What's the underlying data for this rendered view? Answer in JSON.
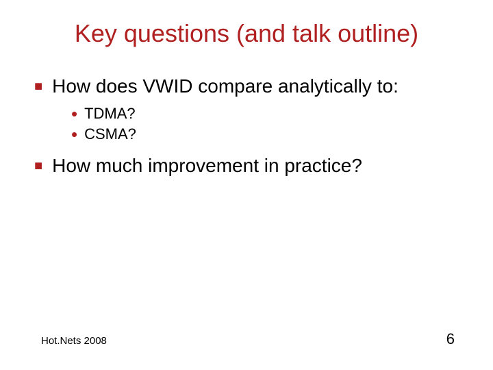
{
  "colors": {
    "accent": "#b02020",
    "text": "#000000",
    "background": "#ffffff"
  },
  "typography": {
    "title_font": "Trebuchet MS",
    "body_font": "Arial",
    "title_fontsize": 36,
    "l1_fontsize": 28,
    "l2_fontsize": 22,
    "footer_fontsize": 15,
    "pagenum_fontsize": 22
  },
  "title": "Key questions (and talk outline)",
  "bullets": [
    {
      "text": "How does VWID compare analytically to:",
      "sub": [
        "TDMA?",
        "CSMA?"
      ]
    },
    {
      "text": "How much improvement in practice?",
      "sub": []
    }
  ],
  "footer": {
    "left": "Hot.Nets 2008",
    "page": "6"
  }
}
